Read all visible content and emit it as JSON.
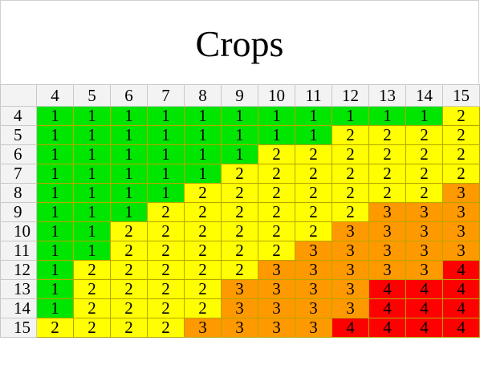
{
  "chart_data": {
    "type": "heatmap",
    "title": "Crops",
    "columns": [
      "4",
      "5",
      "6",
      "7",
      "8",
      "9",
      "10",
      "11",
      "12",
      "13",
      "14",
      "15"
    ],
    "rows": [
      "4",
      "5",
      "6",
      "7",
      "8",
      "9",
      "10",
      "11",
      "12",
      "13",
      "14",
      "15"
    ],
    "values": [
      [
        1,
        1,
        1,
        1,
        1,
        1,
        1,
        1,
        1,
        1,
        1,
        2
      ],
      [
        1,
        1,
        1,
        1,
        1,
        1,
        1,
        1,
        2,
        2,
        2,
        2
      ],
      [
        1,
        1,
        1,
        1,
        1,
        1,
        2,
        2,
        2,
        2,
        2,
        2
      ],
      [
        1,
        1,
        1,
        1,
        1,
        2,
        2,
        2,
        2,
        2,
        2,
        2
      ],
      [
        1,
        1,
        1,
        1,
        2,
        2,
        2,
        2,
        2,
        2,
        2,
        3
      ],
      [
        1,
        1,
        1,
        2,
        2,
        2,
        2,
        2,
        2,
        3,
        3,
        3
      ],
      [
        1,
        1,
        2,
        2,
        2,
        2,
        2,
        2,
        3,
        3,
        3,
        3
      ],
      [
        1,
        1,
        2,
        2,
        2,
        2,
        2,
        3,
        3,
        3,
        3,
        3
      ],
      [
        1,
        2,
        2,
        2,
        2,
        2,
        3,
        3,
        3,
        3,
        3,
        4
      ],
      [
        1,
        2,
        2,
        2,
        2,
        3,
        3,
        3,
        3,
        4,
        4,
        4
      ],
      [
        1,
        2,
        2,
        2,
        2,
        3,
        3,
        3,
        3,
        4,
        4,
        4
      ],
      [
        2,
        2,
        2,
        2,
        3,
        3,
        3,
        3,
        4,
        4,
        4,
        4
      ]
    ],
    "color_scale": {
      "1": "#00e600",
      "2": "#ffff00",
      "3": "#ff9900",
      "4": "#ff0000"
    }
  }
}
